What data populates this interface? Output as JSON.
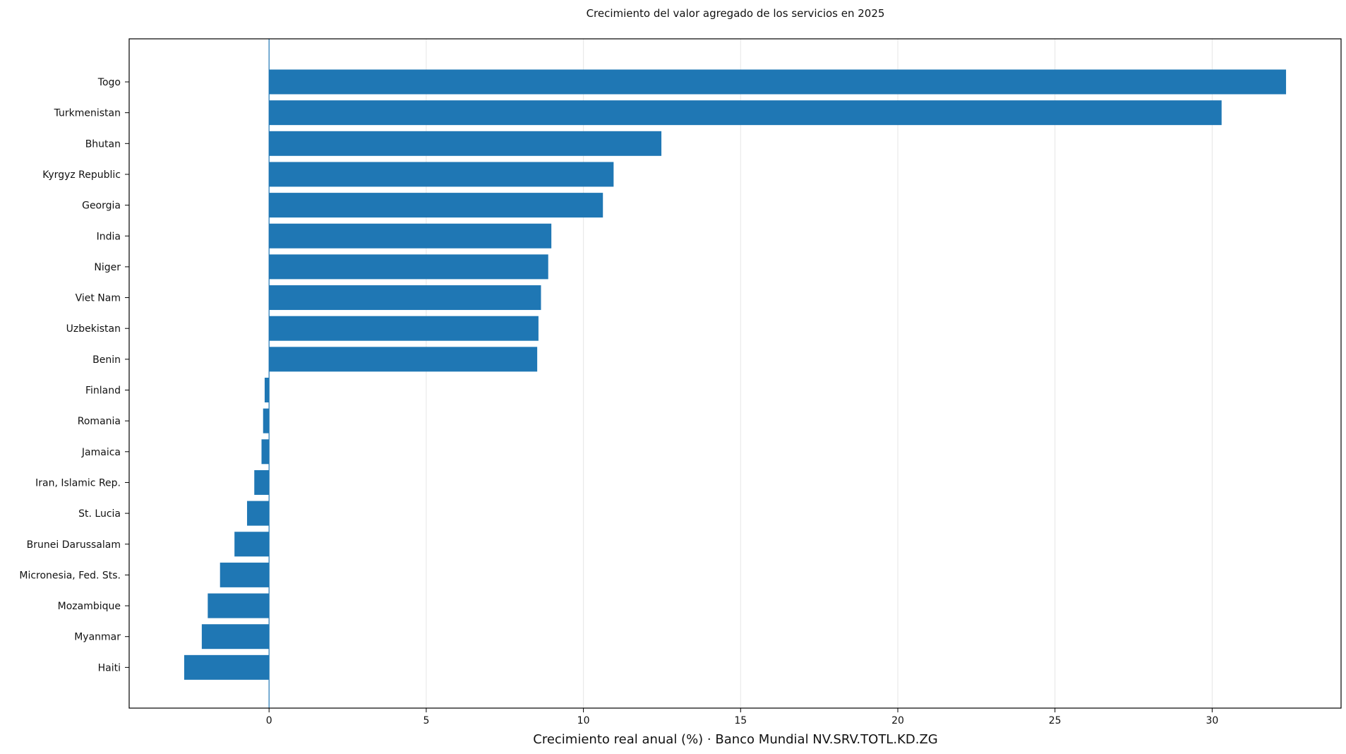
{
  "chart_data": {
    "type": "bar",
    "orientation": "horizontal",
    "title": "Crecimiento del valor agregado de los servicios en 2025",
    "xlabel": "Crecimiento real anual (%) · Banco Mundial NV.SRV.TOTL.KD.ZG",
    "ylabel": "",
    "xlim": [
      -4.45,
      34.1
    ],
    "xticks": [
      0,
      5,
      10,
      15,
      20,
      25,
      30
    ],
    "grid": "vertical",
    "bar_color": "#1f77b4",
    "categories": [
      "Togo",
      "Turkmenistan",
      "Bhutan",
      "Kyrgyz Republic",
      "Georgia",
      "India",
      "Niger",
      "Viet Nam",
      "Uzbekistan",
      "Benin",
      "Finland",
      "Romania",
      "Jamaica",
      "Iran, Islamic Rep.",
      "St. Lucia",
      "Brunei Darussalam",
      "Micronesia, Fed. Sts.",
      "Mozambique",
      "Myanmar",
      "Haiti"
    ],
    "values": [
      32.35,
      30.3,
      12.48,
      10.96,
      10.62,
      8.98,
      8.88,
      8.65,
      8.57,
      8.53,
      -0.14,
      -0.19,
      -0.24,
      -0.47,
      -0.7,
      -1.1,
      -1.56,
      -1.95,
      -2.14,
      -2.7
    ]
  }
}
